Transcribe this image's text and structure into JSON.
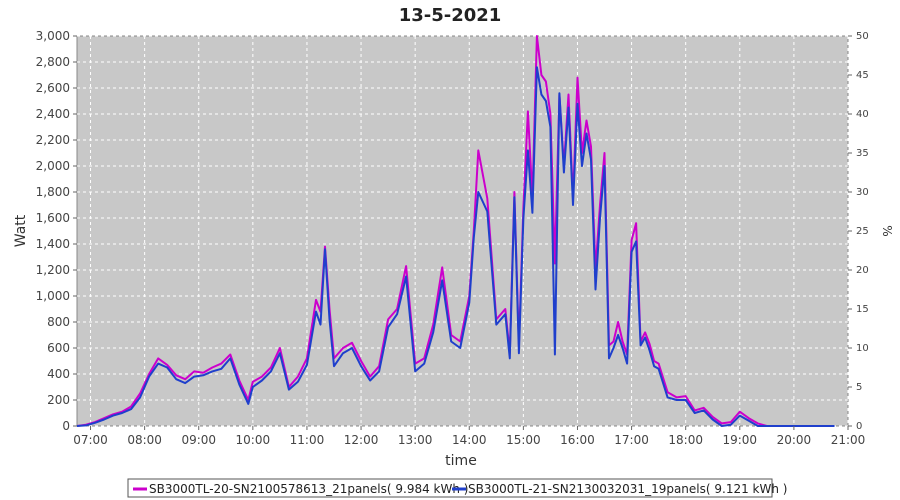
{
  "chart_data": {
    "type": "line",
    "title": "13-5-2021",
    "xlabel": "time",
    "ylabel": "Watt",
    "ylabel_right": "%",
    "xlim": [
      "06:45",
      "21:00"
    ],
    "ylim": [
      0,
      3000
    ],
    "ylim_right": [
      0,
      50
    ],
    "x_ticks": [
      "07:00",
      "08:00",
      "09:00",
      "10:00",
      "11:00",
      "12:00",
      "13:00",
      "14:00",
      "15:00",
      "16:00",
      "17:00",
      "18:00",
      "19:00",
      "20:00",
      "21:00"
    ],
    "y_ticks": [
      "0",
      "200",
      "400",
      "600",
      "800",
      "1,000",
      "1,200",
      "1,400",
      "1,600",
      "1,800",
      "2,000",
      "2,200",
      "2,400",
      "2,600",
      "2,800",
      "3,000"
    ],
    "y_ticks_right": [
      "0",
      "5",
      "10",
      "15",
      "20",
      "25",
      "30",
      "35",
      "40",
      "45",
      "50"
    ],
    "grid": true,
    "legend_placement": "bottom",
    "x": [
      "06:45",
      "06:55",
      "07:05",
      "07:15",
      "07:25",
      "07:35",
      "07:45",
      "07:55",
      "08:05",
      "08:15",
      "08:25",
      "08:35",
      "08:45",
      "08:55",
      "09:05",
      "09:15",
      "09:25",
      "09:35",
      "09:45",
      "09:55",
      "10:00",
      "10:10",
      "10:20",
      "10:30",
      "10:40",
      "10:50",
      "11:00",
      "11:10",
      "11:15",
      "11:20",
      "11:25",
      "11:30",
      "11:40",
      "11:50",
      "12:00",
      "12:10",
      "12:20",
      "12:30",
      "12:40",
      "12:50",
      "13:00",
      "13:10",
      "13:20",
      "13:30",
      "13:40",
      "13:50",
      "14:00",
      "14:05",
      "14:10",
      "14:20",
      "14:30",
      "14:40",
      "14:45",
      "14:50",
      "14:55",
      "15:00",
      "15:05",
      "15:10",
      "15:15",
      "15:20",
      "15:25",
      "15:30",
      "15:35",
      "15:40",
      "15:45",
      "15:50",
      "15:55",
      "16:00",
      "16:05",
      "16:10",
      "16:15",
      "16:20",
      "16:25",
      "16:30",
      "16:35",
      "16:40",
      "16:45",
      "16:50",
      "16:55",
      "17:00",
      "17:05",
      "17:10",
      "17:15",
      "17:20",
      "17:25",
      "17:30",
      "17:40",
      "17:50",
      "18:00",
      "18:10",
      "18:20",
      "18:30",
      "18:40",
      "18:50",
      "19:00",
      "19:10",
      "19:20",
      "19:30",
      "19:40",
      "19:50",
      "20:00",
      "20:10",
      "20:20",
      "20:30",
      "20:40",
      "20:45"
    ],
    "series": [
      {
        "name": "SB3000TL-20-SN2100578613_21panels( 9.984 kWh )",
        "color": "#cc00cc",
        "values": [
          0,
          10,
          30,
          60,
          90,
          110,
          150,
          250,
          400,
          520,
          470,
          390,
          360,
          420,
          410,
          450,
          480,
          550,
          350,
          200,
          340,
          380,
          450,
          600,
          300,
          380,
          520,
          970,
          880,
          1380,
          900,
          520,
          600,
          640,
          500,
          380,
          460,
          820,
          900,
          1230,
          480,
          520,
          780,
          1220,
          700,
          650,
          1000,
          1500,
          2120,
          1750,
          820,
          900,
          560,
          1800,
          620,
          1680,
          2420,
          1760,
          3000,
          2700,
          2650,
          2400,
          1250,
          2550,
          2000,
          2550,
          1750,
          2680,
          2100,
          2350,
          2150,
          1200,
          1700,
          2100,
          620,
          650,
          800,
          650,
          550,
          1430,
          1560,
          650,
          720,
          630,
          500,
          480,
          260,
          220,
          230,
          120,
          140,
          70,
          20,
          30,
          110,
          60,
          20,
          0,
          0,
          0,
          0,
          0,
          0,
          0,
          0,
          0
        ],
        "values_note": ""
      },
      {
        "name": "SB3000TL-21-SN2130032031_19panels( 9.121 kWh )",
        "color": "#1f3fcc",
        "values": [
          0,
          5,
          25,
          50,
          80,
          100,
          130,
          220,
          380,
          480,
          450,
          360,
          330,
          380,
          390,
          420,
          440,
          520,
          320,
          170,
          300,
          350,
          420,
          560,
          280,
          340,
          470,
          880,
          780,
          1360,
          820,
          460,
          560,
          600,
          460,
          350,
          420,
          760,
          860,
          1150,
          420,
          480,
          720,
          1120,
          650,
          600,
          950,
          1450,
          1800,
          1650,
          780,
          860,
          520,
          1760,
          560,
          1600,
          2120,
          1640,
          2760,
          2550,
          2500,
          2300,
          550,
          2560,
          1950,
          2450,
          1700,
          2480,
          2000,
          2250,
          2050,
          1050,
          1600,
          2000,
          520,
          600,
          700,
          600,
          480,
          1340,
          1420,
          620,
          680,
          580,
          460,
          440,
          220,
          200,
          200,
          100,
          120,
          50,
          0,
          10,
          80,
          40,
          0,
          0,
          0,
          0,
          0,
          0,
          0,
          0,
          0,
          0
        ]
      }
    ]
  }
}
